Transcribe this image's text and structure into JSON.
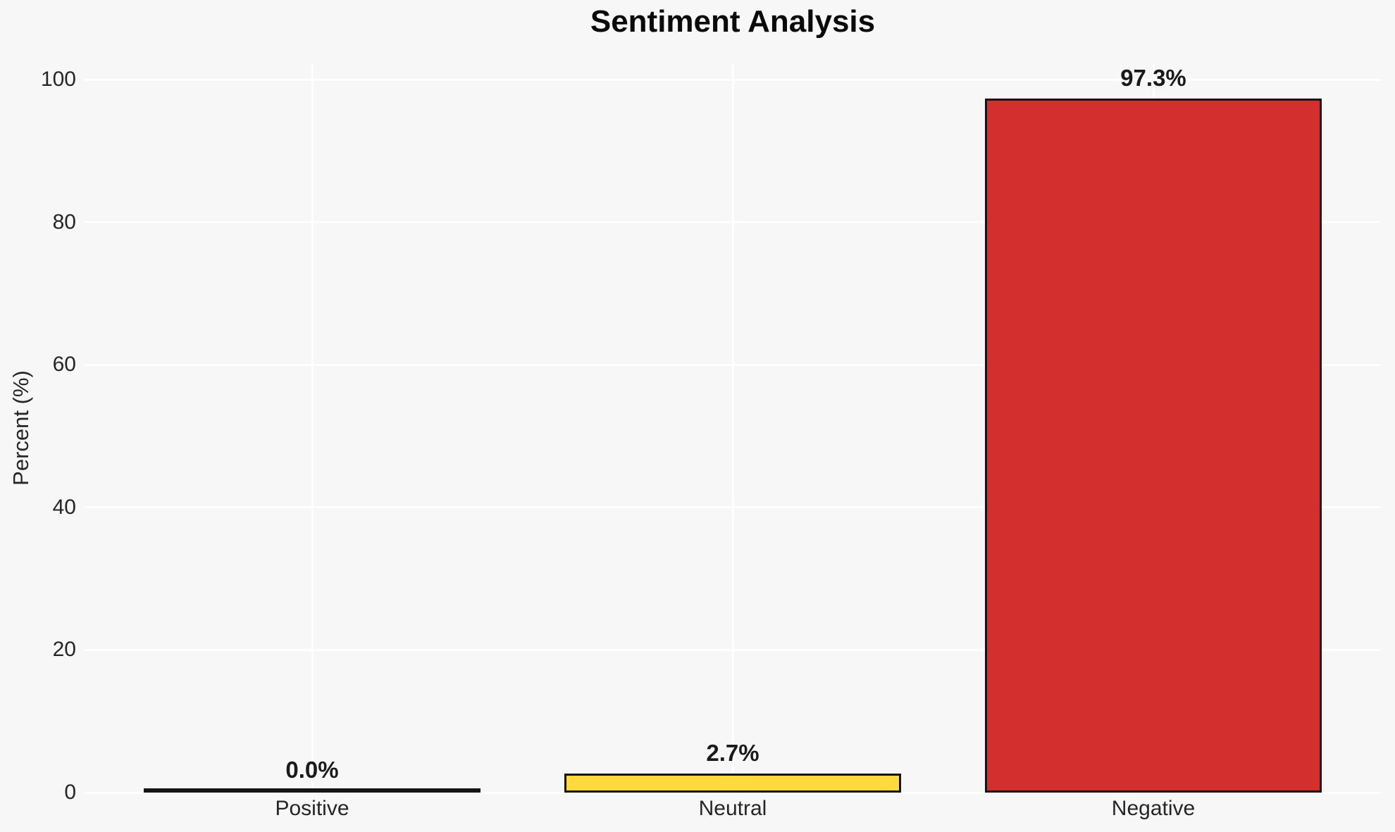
{
  "chart_data": {
    "type": "bar",
    "title": "Sentiment Analysis",
    "ylabel": "Percent (%)",
    "xlabel": "",
    "categories": [
      "Positive",
      "Neutral",
      "Negative"
    ],
    "values": [
      0.0,
      2.7,
      97.3
    ],
    "value_labels": [
      "0.0%",
      "2.7%",
      "97.3%"
    ],
    "bar_colors": [
      "#4CAF50",
      "#FFD93D",
      "#D32F2F"
    ],
    "bar_edge_color": "#141414",
    "yticks": [
      0,
      20,
      40,
      60,
      80,
      100
    ],
    "ylim": [
      0,
      102.2
    ],
    "grid": true,
    "grid_color": "#FFFFFF",
    "background_color": "#F7F7F7",
    "legend": null
  }
}
